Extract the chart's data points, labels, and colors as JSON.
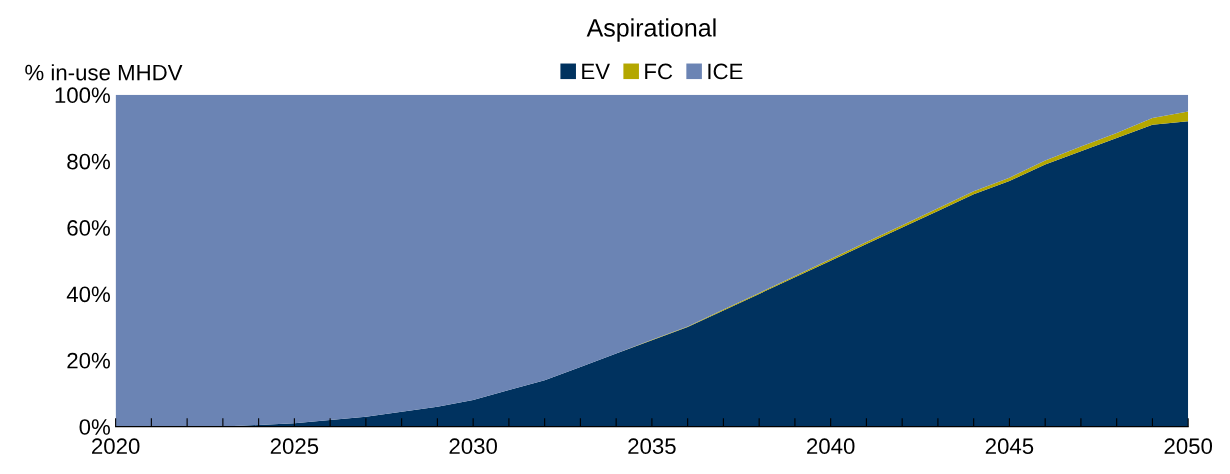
{
  "chart_data": {
    "type": "area",
    "stacked": true,
    "title": "Aspirational",
    "ylabel": "% in-use MHDV",
    "x": [
      2020,
      2021,
      2022,
      2023,
      2024,
      2025,
      2026,
      2027,
      2028,
      2029,
      2030,
      2031,
      2032,
      2033,
      2034,
      2035,
      2036,
      2037,
      2038,
      2039,
      2040,
      2041,
      2042,
      2043,
      2044,
      2045,
      2046,
      2047,
      2048,
      2049,
      2050
    ],
    "series": [
      {
        "name": "EV",
        "color": "#00325f",
        "values": [
          0,
          0,
          0,
          0,
          0.5,
          1,
          2,
          3,
          4.5,
          6,
          8,
          11,
          14,
          18,
          22,
          26,
          30,
          35,
          40,
          45,
          50,
          55,
          60,
          65,
          70,
          74,
          79,
          83,
          87,
          91,
          92
        ]
      },
      {
        "name": "FC",
        "color": "#b4a700",
        "values": [
          0,
          0,
          0,
          0,
          0,
          0,
          0,
          0,
          0,
          0,
          0,
          0,
          0,
          0,
          0,
          0.2,
          0.2,
          0.3,
          0.3,
          0.4,
          0.5,
          0.6,
          0.7,
          0.8,
          0.9,
          1,
          1.2,
          1.4,
          1.5,
          2,
          3
        ]
      },
      {
        "name": "ICE",
        "color": "#6b84b4",
        "values": [
          100,
          100,
          100,
          100,
          99.5,
          99,
          98,
          97,
          95.5,
          94,
          92,
          89,
          86,
          82,
          78,
          73.8,
          69.8,
          64.7,
          59.7,
          54.6,
          49.5,
          44.4,
          39.3,
          34.2,
          29.1,
          25,
          19.8,
          15.6,
          11.5,
          7,
          5
        ]
      }
    ],
    "xlim": [
      2020,
      2050
    ],
    "xticks": [
      2020,
      {
        "value": 2021,
        "label": null
      },
      {
        "value": 2022,
        "label": null
      },
      {
        "value": 2023,
        "label": null
      },
      {
        "value": 2024,
        "label": null
      },
      2025,
      {
        "value": 2026,
        "label": null
      },
      {
        "value": 2027,
        "label": null
      },
      {
        "value": 2028,
        "label": null
      },
      {
        "value": 2029,
        "label": null
      },
      2030,
      {
        "value": 2031,
        "label": null
      },
      {
        "value": 2032,
        "label": null
      },
      {
        "value": 2033,
        "label": null
      },
      {
        "value": 2034,
        "label": null
      },
      2035,
      {
        "value": 2036,
        "label": null
      },
      {
        "value": 2037,
        "label": null
      },
      {
        "value": 2038,
        "label": null
      },
      {
        "value": 2039,
        "label": null
      },
      2040,
      {
        "value": 2041,
        "label": null
      },
      {
        "value": 2042,
        "label": null
      },
      {
        "value": 2043,
        "label": null
      },
      {
        "value": 2044,
        "label": null
      },
      2045,
      {
        "value": 2046,
        "label": null
      },
      {
        "value": 2047,
        "label": null
      },
      {
        "value": 2048,
        "label": null
      },
      {
        "value": 2049,
        "label": null
      },
      2050
    ],
    "ylim": [
      0,
      100
    ],
    "yticks": [
      {
        "value": 0,
        "label": "0%"
      },
      {
        "value": 20,
        "label": "20%"
      },
      {
        "value": 40,
        "label": "40%"
      },
      {
        "value": 60,
        "label": "60%"
      },
      {
        "value": 80,
        "label": "80%"
      },
      {
        "value": 100,
        "label": "100%"
      }
    ],
    "grid": false,
    "legend": "top"
  }
}
